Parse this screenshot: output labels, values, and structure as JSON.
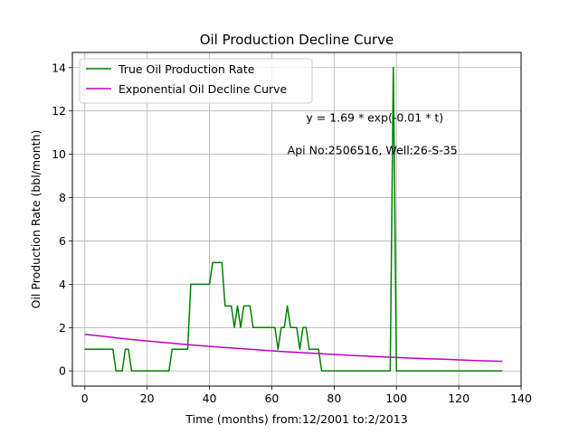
{
  "chart_data": {
    "type": "line",
    "title": "Oil Production Decline Curve",
    "xlabel": "Time (months) from:12/2001 to:2/2013",
    "ylabel": "Oil Production Rate (bbl/month)",
    "xlim": [
      -4,
      140
    ],
    "ylim": [
      -0.7,
      14.7
    ],
    "xticks": [
      0,
      20,
      40,
      60,
      80,
      100,
      120,
      140
    ],
    "yticks": [
      0,
      2,
      4,
      6,
      8,
      10,
      12,
      14
    ],
    "grid": true,
    "legend_position": "top-left",
    "annotations": [
      {
        "text": "y = 1.69 * exp(-0.01 * t)",
        "x": 71,
        "y": 11.5
      },
      {
        "text": "Api No:2506516, Well:26-S-35",
        "x": 65,
        "y": 10
      }
    ],
    "series": [
      {
        "name": "True Oil Production Rate",
        "color": "#008000",
        "x": [
          0,
          1,
          2,
          3,
          4,
          5,
          6,
          7,
          8,
          9,
          10,
          11,
          12,
          13,
          14,
          15,
          16,
          17,
          18,
          19,
          20,
          21,
          22,
          23,
          24,
          25,
          26,
          27,
          28,
          29,
          30,
          31,
          32,
          33,
          34,
          35,
          36,
          37,
          38,
          39,
          40,
          41,
          42,
          43,
          44,
          45,
          46,
          47,
          48,
          49,
          50,
          51,
          52,
          53,
          54,
          55,
          56,
          57,
          58,
          59,
          60,
          61,
          62,
          63,
          64,
          65,
          66,
          67,
          68,
          69,
          70,
          71,
          72,
          73,
          74,
          75,
          76,
          77,
          78,
          79,
          80,
          81,
          82,
          83,
          84,
          85,
          86,
          87,
          88,
          89,
          90,
          91,
          92,
          93,
          94,
          95,
          96,
          97,
          98,
          99,
          100,
          101,
          102,
          103,
          104,
          105,
          106,
          107,
          108,
          109,
          110,
          111,
          112,
          113,
          114,
          115,
          116,
          117,
          118,
          119,
          120,
          121,
          122,
          123,
          124,
          125,
          126,
          127,
          128,
          129,
          130,
          131,
          132,
          133,
          134
        ],
        "y": [
          1,
          1,
          1,
          1,
          1,
          1,
          1,
          1,
          1,
          1,
          0,
          0,
          0,
          1,
          1,
          0,
          0,
          0,
          0,
          0,
          0,
          0,
          0,
          0,
          0,
          0,
          0,
          0,
          1,
          1,
          1,
          1,
          1,
          1,
          4,
          4,
          4,
          4,
          4,
          4,
          4,
          5,
          5,
          5,
          5,
          3,
          3,
          3,
          2,
          3,
          2,
          3,
          3,
          3,
          2,
          2,
          2,
          2,
          2,
          2,
          2,
          2,
          1,
          2,
          2,
          3,
          2,
          2,
          2,
          1,
          2,
          2,
          1,
          1,
          1,
          1,
          0,
          0,
          0,
          0,
          0,
          0,
          0,
          0,
          0,
          0,
          0,
          0,
          0,
          0,
          0,
          0,
          0,
          0,
          0,
          0,
          0,
          0,
          0,
          14,
          0,
          0,
          0,
          0,
          0,
          0,
          0,
          0,
          0,
          0,
          0,
          0,
          0,
          0,
          0,
          0,
          0,
          0,
          0,
          0,
          0,
          0,
          0,
          0,
          0,
          0,
          0,
          0,
          0,
          0,
          0,
          0,
          0,
          0,
          0
        ]
      },
      {
        "name": "Exponential Oil Decline Curve",
        "color": "#bf00bf",
        "x": [
          0,
          5,
          10,
          15,
          20,
          25,
          30,
          35,
          40,
          45,
          50,
          55,
          60,
          65,
          70,
          75,
          80,
          85,
          90,
          95,
          100,
          105,
          110,
          115,
          120,
          125,
          130,
          134
        ],
        "y": [
          1.69,
          1.61,
          1.53,
          1.45,
          1.38,
          1.32,
          1.25,
          1.19,
          1.13,
          1.08,
          1.03,
          0.98,
          0.93,
          0.88,
          0.84,
          0.8,
          0.76,
          0.72,
          0.69,
          0.65,
          0.62,
          0.59,
          0.56,
          0.54,
          0.51,
          0.48,
          0.46,
          0.44
        ]
      }
    ]
  }
}
